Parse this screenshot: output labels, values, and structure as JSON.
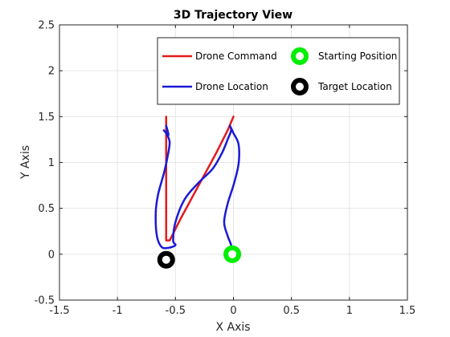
{
  "chart_data": {
    "type": "line",
    "title": "3D Trajectory View",
    "xlabel": "X Axis",
    "ylabel": "Y Axis",
    "xlim": [
      -1.5,
      1.5
    ],
    "ylim": [
      -0.5,
      2.5
    ],
    "xticks": [
      -1.5,
      -1,
      -0.5,
      0,
      0.5,
      1,
      1.5
    ],
    "xtick_labels": [
      "-1.5",
      "-1",
      "-0.5",
      "0",
      "0.5",
      "1",
      "1.5"
    ],
    "yticks": [
      -0.5,
      0,
      0.5,
      1,
      1.5,
      2,
      2.5
    ],
    "ytick_labels": [
      "-0.5",
      "0",
      "0.5",
      "1",
      "1.5",
      "2",
      "2.5"
    ],
    "grid": true,
    "legend_position": "top-right",
    "series": [
      {
        "name": "Drone Command",
        "kind": "line",
        "color": "#e41a1c",
        "x": [
          -0.58,
          -0.58,
          -0.58,
          -0.55,
          -0.45,
          -0.3,
          -0.15,
          -0.05,
          0.0
        ],
        "y": [
          1.5,
          0.6,
          0.15,
          0.15,
          0.4,
          0.75,
          1.1,
          1.35,
          1.5
        ]
      },
      {
        "name": "Drone Location",
        "kind": "line",
        "color": "#1a1ad6",
        "x": [
          -0.01,
          -0.02,
          -0.05,
          -0.08,
          -0.05,
          0.0,
          0.04,
          0.05,
          0.04,
          0.0,
          -0.03,
          -0.02,
          -0.05,
          -0.1,
          -0.18,
          -0.3,
          -0.42,
          -0.5,
          -0.52,
          -0.5,
          -0.56,
          -0.62,
          -0.66,
          -0.67,
          -0.65,
          -0.6,
          -0.57,
          -0.55,
          -0.58,
          -0.6,
          -0.56,
          -0.58,
          -0.57
        ],
        "y": [
          0.0,
          0.1,
          0.2,
          0.35,
          0.55,
          0.75,
          0.95,
          1.1,
          1.22,
          1.32,
          1.4,
          1.35,
          1.25,
          1.1,
          0.93,
          0.78,
          0.6,
          0.35,
          0.15,
          0.1,
          0.07,
          0.08,
          0.2,
          0.45,
          0.65,
          0.88,
          1.05,
          1.22,
          1.32,
          1.35,
          1.3,
          1.4,
          1.35
        ]
      },
      {
        "name": "Starting Position",
        "kind": "marker",
        "color": "#00ee00",
        "x": [
          -0.01
        ],
        "y": [
          0.0
        ]
      },
      {
        "name": "Target Location",
        "kind": "marker",
        "color": "#000000",
        "x": [
          -0.58
        ],
        "y": [
          -0.06
        ]
      }
    ]
  }
}
